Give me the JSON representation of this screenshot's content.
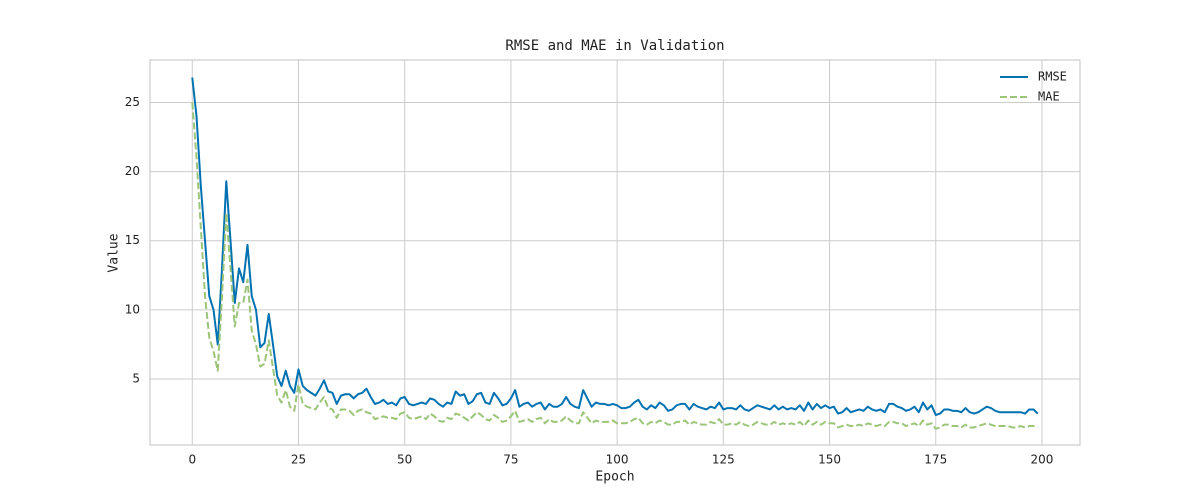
{
  "chart_data": {
    "type": "line",
    "title": "RMSE and MAE in Validation",
    "x_label": "Epoch",
    "y_label": "Value",
    "x": [
      0,
      1,
      2,
      3,
      4,
      5,
      6,
      7,
      8,
      9,
      10,
      11,
      12,
      13,
      14,
      15,
      16,
      17,
      18,
      19,
      20,
      21,
      22,
      23,
      24,
      25,
      26,
      27,
      28,
      29,
      30,
      31,
      32,
      33,
      34,
      35,
      36,
      37,
      38,
      39,
      40,
      41,
      42,
      43,
      44,
      45,
      46,
      47,
      48,
      49,
      50,
      51,
      52,
      53,
      54,
      55,
      56,
      57,
      58,
      59,
      60,
      61,
      62,
      63,
      64,
      65,
      66,
      67,
      68,
      69,
      70,
      71,
      72,
      73,
      74,
      75,
      76,
      77,
      78,
      79,
      80,
      81,
      82,
      83,
      84,
      85,
      86,
      87,
      88,
      89,
      90,
      91,
      92,
      93,
      94,
      95,
      96,
      97,
      98,
      99,
      100,
      101,
      102,
      103,
      104,
      105,
      106,
      107,
      108,
      109,
      110,
      111,
      112,
      113,
      114,
      115,
      116,
      117,
      118,
      119,
      120,
      121,
      122,
      123,
      124,
      125,
      126,
      127,
      128,
      129,
      130,
      131,
      132,
      133,
      134,
      135,
      136,
      137,
      138,
      139,
      140,
      141,
      142,
      143,
      144,
      145,
      146,
      147,
      148,
      149,
      150,
      151,
      152,
      153,
      154,
      155,
      156,
      157,
      158,
      159,
      160,
      161,
      162,
      163,
      164,
      165,
      166,
      167,
      168,
      169,
      170,
      171,
      172,
      173,
      174,
      175,
      176,
      177,
      178,
      179,
      180,
      181,
      182,
      183,
      184,
      185,
      186,
      187,
      188,
      189,
      190,
      191,
      192,
      193,
      194,
      195,
      196,
      197,
      198,
      199
    ],
    "series": [
      {
        "name": "RMSE",
        "color": "#0072b2",
        "dashed": false,
        "values": [
          26.8,
          24,
          19,
          15,
          11,
          10,
          7.5,
          13,
          19.3,
          15,
          10.5,
          13,
          12,
          14.7,
          11,
          10,
          7.3,
          7.6,
          9.7,
          7.5,
          5.2,
          4.5,
          5.6,
          4.5,
          4,
          5.7,
          4.5,
          4.2,
          4,
          3.8,
          4.3,
          4.9,
          4.1,
          4,
          3.2,
          3.8,
          3.9,
          3.9,
          3.6,
          3.9,
          4,
          4.3,
          3.7,
          3.2,
          3.3,
          3.5,
          3.2,
          3.3,
          3.1,
          3.6,
          3.7,
          3.2,
          3.1,
          3.2,
          3.3,
          3.2,
          3.6,
          3.5,
          3.2,
          3,
          3.3,
          3.2,
          4.1,
          3.8,
          3.9,
          3.2,
          3.4,
          3.9,
          4,
          3.3,
          3.2,
          4,
          3.6,
          3.1,
          3.2,
          3.6,
          4.2,
          3,
          3.2,
          3.3,
          3,
          3.2,
          3.3,
          2.8,
          3.2,
          3,
          3,
          3.2,
          3.7,
          3.2,
          3,
          2.9,
          4.2,
          3.6,
          3,
          3.3,
          3.2,
          3.2,
          3.1,
          3.2,
          3.1,
          2.9,
          2.9,
          3,
          3.3,
          3.5,
          3,
          2.8,
          3.1,
          2.9,
          3.3,
          3.1,
          2.7,
          2.8,
          3.1,
          3.2,
          3.2,
          2.8,
          3.2,
          3,
          2.9,
          2.8,
          3,
          2.9,
          3.3,
          2.8,
          2.9,
          2.9,
          2.8,
          3.1,
          2.8,
          2.7,
          2.9,
          3.1,
          3,
          2.9,
          2.8,
          3.1,
          2.8,
          3,
          2.8,
          2.9,
          2.8,
          3.1,
          2.7,
          3.3,
          2.8,
          3.2,
          2.9,
          3.1,
          2.9,
          3,
          2.5,
          2.6,
          2.9,
          2.6,
          2.7,
          2.8,
          2.7,
          3,
          2.8,
          2.7,
          2.8,
          2.6,
          3.2,
          3.2,
          3,
          2.9,
          2.7,
          2.8,
          3,
          2.6,
          3.3,
          2.8,
          3.1,
          2.4,
          2.5,
          2.8,
          2.8,
          2.7,
          2.7,
          2.6,
          2.9,
          2.6,
          2.5,
          2.6,
          2.8,
          3,
          2.9,
          2.7,
          2.6,
          2.6,
          2.6,
          2.6,
          2.6,
          2.6,
          2.5,
          2.8,
          2.8,
          2.5
        ]
      },
      {
        "name": "MAE",
        "color": "#9cc57a",
        "dashed": true,
        "values": [
          25,
          21,
          16,
          11,
          8,
          7,
          5.6,
          11,
          17,
          13,
          8.8,
          10.5,
          10.5,
          12.2,
          8.5,
          7.5,
          5.9,
          6.1,
          7.8,
          5.8,
          3.8,
          3.3,
          4.2,
          3,
          2.7,
          4.6,
          3.2,
          3,
          2.9,
          2.8,
          3.3,
          3.7,
          2.9,
          2.8,
          2.2,
          2.8,
          2.8,
          2.7,
          2.4,
          2.7,
          2.8,
          2.6,
          2.5,
          2.1,
          2.2,
          2.3,
          2.2,
          2.2,
          2.1,
          2.5,
          2.6,
          2.2,
          2.1,
          2.2,
          2.3,
          2.1,
          2.5,
          2.3,
          2,
          1.9,
          2.2,
          2.1,
          2.5,
          2.4,
          2.2,
          2,
          2.3,
          2.6,
          2.4,
          2.1,
          2,
          2.4,
          2.2,
          1.9,
          2,
          2.3,
          2.7,
          1.9,
          2,
          2.1,
          1.9,
          2.1,
          2.2,
          1.8,
          2.1,
          1.9,
          1.9,
          2,
          2.3,
          2,
          1.8,
          1.8,
          2.6,
          2.2,
          1.8,
          2,
          1.9,
          1.9,
          1.9,
          2,
          1.8,
          1.8,
          1.8,
          1.9,
          2.1,
          2.2,
          1.8,
          1.7,
          1.9,
          1.8,
          2,
          1.9,
          1.7,
          1.7,
          1.9,
          1.9,
          2,
          1.7,
          1.9,
          1.8,
          1.7,
          1.7,
          1.9,
          1.8,
          2.1,
          1.7,
          1.7,
          1.8,
          1.7,
          1.9,
          1.7,
          1.6,
          1.7,
          1.9,
          1.8,
          1.7,
          1.7,
          1.9,
          1.7,
          1.8,
          1.7,
          1.8,
          1.7,
          1.9,
          1.6,
          2,
          1.7,
          1.9,
          1.7,
          1.9,
          1.8,
          1.8,
          1.5,
          1.6,
          1.7,
          1.6,
          1.6,
          1.7,
          1.6,
          1.8,
          1.7,
          1.6,
          1.7,
          1.6,
          1.9,
          1.9,
          1.8,
          1.8,
          1.6,
          1.7,
          1.8,
          1.6,
          2,
          1.7,
          1.8,
          1.4,
          1.5,
          1.7,
          1.7,
          1.6,
          1.6,
          1.5,
          1.7,
          1.5,
          1.5,
          1.6,
          1.7,
          1.8,
          1.7,
          1.6,
          1.6,
          1.6,
          1.6,
          1.5,
          1.5,
          1.6,
          1.5,
          1.6,
          1.6,
          1.5
        ]
      }
    ],
    "xlim": [
      -9.95,
      208.95
    ],
    "xticks": [
      0,
      25,
      50,
      75,
      100,
      125,
      150,
      175,
      200
    ],
    "ylim": [
      0.23,
      28.07
    ],
    "yticks": [
      5,
      10,
      15,
      20,
      25
    ],
    "grid": true,
    "legend": "upper right"
  }
}
